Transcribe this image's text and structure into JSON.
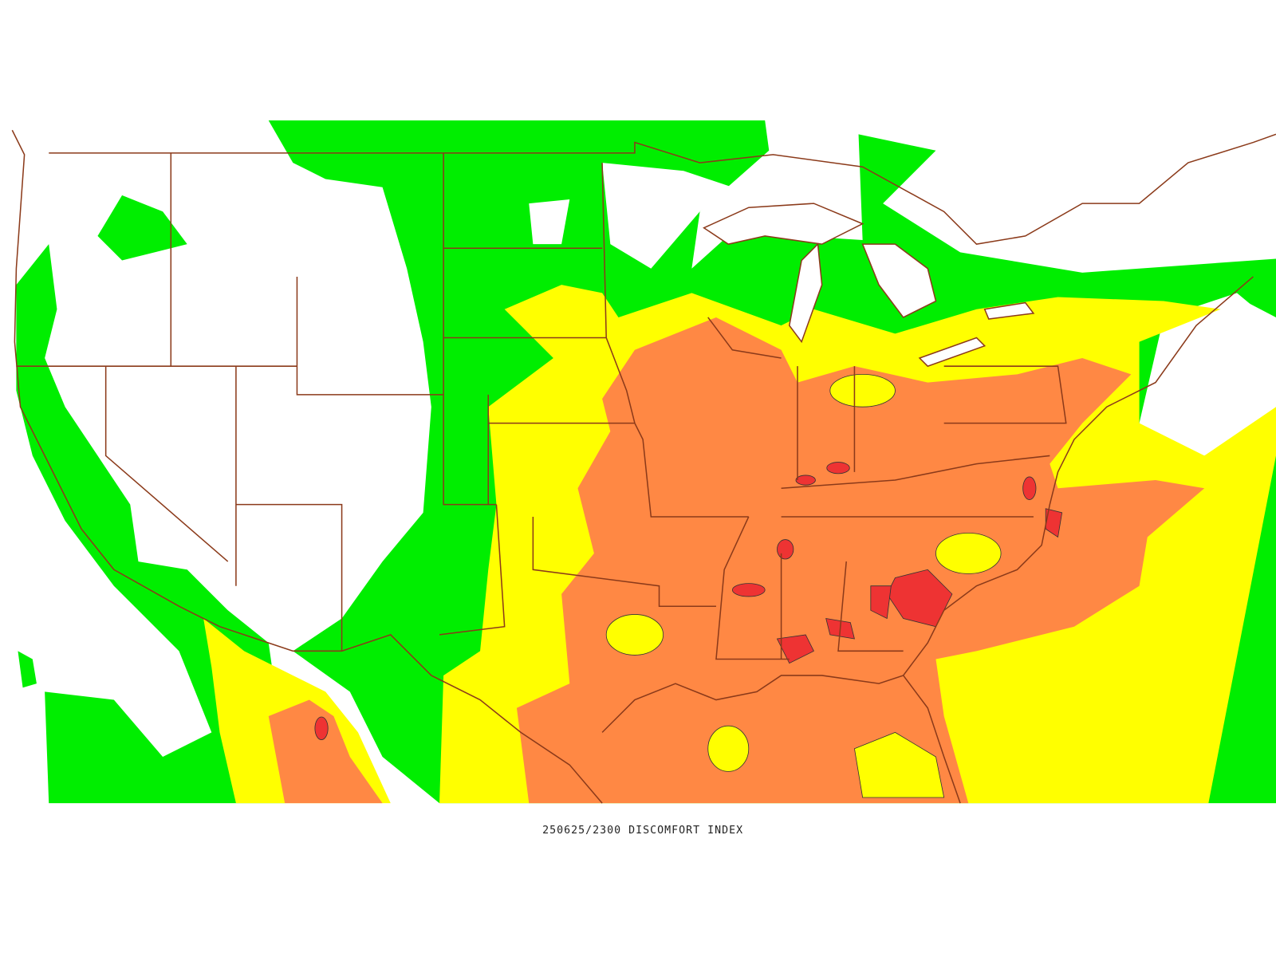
{
  "map": {
    "caption": "250625/2300 DISCOMFORT INDEX"
  }
}
